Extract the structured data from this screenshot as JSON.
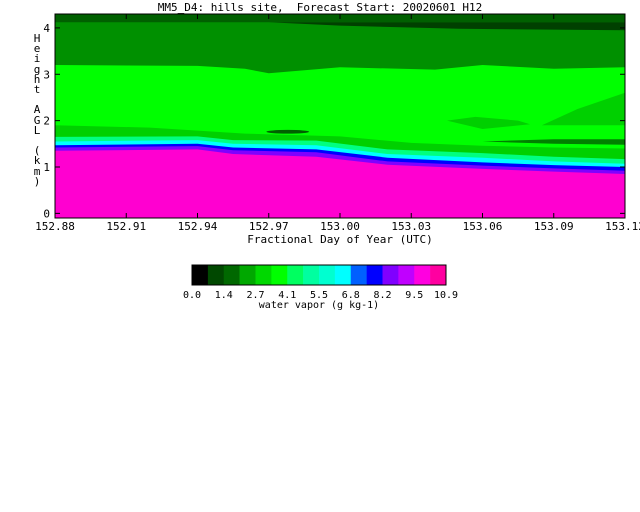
{
  "chart_data": {
    "type": "heatmap",
    "title": "MM5_D4: hills site,  Forecast Start: 20020601 H12",
    "xlabel": "Fractional Day of Year (UTC)",
    "ylabel": "Height AGL (km)",
    "xlim": [
      152.88,
      153.12
    ],
    "ylim": [
      -0.1,
      4.3
    ],
    "x_ticks": [
      "152.88",
      "152.91",
      "152.94",
      "152.97",
      "153.00",
      "153.03",
      "153.06",
      "153.09",
      "153.12"
    ],
    "y_ticks": [
      "0",
      "1",
      "2",
      "3",
      "4"
    ],
    "colorbar": {
      "label": "water vapor (g kg-1)",
      "tick_labels": [
        "0.0",
        "1.4",
        "2.7",
        "4.1",
        "5.5",
        "6.8",
        "8.2",
        "9.5",
        "10.9"
      ],
      "level_boundaries": [
        0.0,
        0.68,
        1.36,
        2.04,
        2.72,
        3.4,
        4.08,
        4.76,
        5.44,
        6.12,
        6.8,
        7.48,
        8.16,
        8.84,
        9.52,
        10.2,
        10.9
      ],
      "colors": [
        "#000000",
        "#004800",
        "#006800",
        "#00a800",
        "#00d800",
        "#00ff00",
        "#00ff60",
        "#00ffa0",
        "#00ffd0",
        "#00ffff",
        "#0060ff",
        "#0000ff",
        "#8000ff",
        "#c000ff",
        "#ff00e0",
        "#ff00a0"
      ]
    },
    "fields": [
      {
        "name": "moist boundary layer",
        "level": 10.2,
        "color": "#ff00d0",
        "top": [
          [
            152.88,
            1.35
          ],
          [
            152.94,
            1.38
          ],
          [
            152.955,
            1.28
          ],
          [
            152.99,
            1.22
          ],
          [
            153.02,
            1.05
          ],
          [
            153.06,
            0.96
          ],
          [
            153.09,
            0.9
          ],
          [
            153.12,
            0.85
          ]
        ]
      },
      {
        "name": "transition 9.5",
        "level": 9.5,
        "color": "#8000ff",
        "top": [
          [
            152.88,
            1.42
          ],
          [
            152.94,
            1.45
          ],
          [
            152.955,
            1.36
          ],
          [
            152.99,
            1.32
          ],
          [
            153.02,
            1.12
          ],
          [
            153.06,
            1.03
          ],
          [
            153.09,
            0.97
          ],
          [
            153.12,
            0.92
          ]
        ]
      },
      {
        "name": "transition 8.2",
        "level": 8.2,
        "color": "#0000ff",
        "top": [
          [
            152.88,
            1.47
          ],
          [
            152.94,
            1.5
          ],
          [
            152.955,
            1.42
          ],
          [
            152.99,
            1.38
          ],
          [
            153.02,
            1.2
          ],
          [
            153.06,
            1.1
          ],
          [
            153.09,
            1.04
          ],
          [
            153.12,
            1.0
          ]
        ]
      },
      {
        "name": "transition 6.8",
        "level": 6.8,
        "color": "#00ffff",
        "top": [
          [
            152.88,
            1.55
          ],
          [
            152.94,
            1.58
          ],
          [
            152.955,
            1.5
          ],
          [
            152.99,
            1.47
          ],
          [
            153.02,
            1.28
          ],
          [
            153.06,
            1.2
          ],
          [
            153.09,
            1.12
          ],
          [
            153.12,
            1.07
          ]
        ]
      },
      {
        "name": "transition 5.5",
        "level": 5.5,
        "color": "#00ff80",
        "top": [
          [
            152.88,
            1.65
          ],
          [
            152.94,
            1.66
          ],
          [
            152.955,
            1.58
          ],
          [
            152.99,
            1.57
          ],
          [
            153.02,
            1.38
          ],
          [
            153.06,
            1.3
          ],
          [
            153.09,
            1.22
          ],
          [
            153.12,
            1.17
          ]
        ]
      },
      {
        "name": "mid layer",
        "level": 2.7,
        "color": "#00d000",
        "top": [
          [
            152.88,
            1.9
          ],
          [
            152.92,
            1.85
          ],
          [
            152.96,
            1.72
          ],
          [
            153.0,
            1.66
          ],
          [
            153.03,
            1.52
          ],
          [
            153.06,
            1.46
          ],
          [
            153.09,
            1.42
          ],
          [
            153.12,
            1.4
          ]
        ]
      },
      {
        "name": "upper moist",
        "level": 4.1,
        "color": "#00ff00",
        "top": [
          [
            152.88,
            3.2
          ],
          [
            152.94,
            3.18
          ],
          [
            152.96,
            3.12
          ],
          [
            152.97,
            3.02
          ],
          [
            153.0,
            3.15
          ],
          [
            153.04,
            3.1
          ],
          [
            153.06,
            3.2
          ],
          [
            153.09,
            3.12
          ],
          [
            153.12,
            3.15
          ]
        ]
      },
      {
        "name": "upper dry",
        "level": 1.4,
        "color": "#009000",
        "top": [
          [
            152.88,
            4.12
          ],
          [
            153.12,
            4.12
          ]
        ]
      }
    ],
    "features": [
      {
        "name": "dry lens",
        "color": "#006000",
        "x": 152.978,
        "y": 1.76,
        "rx": 0.009,
        "ry": 0.04
      },
      {
        "name": "green bump",
        "color": "#00d000",
        "outline": [
          [
            153.045,
            2.0
          ],
          [
            153.057,
            2.08
          ],
          [
            153.075,
            2.0
          ],
          [
            153.08,
            1.92
          ],
          [
            153.06,
            1.82
          ]
        ]
      },
      {
        "name": "right wedge",
        "color": "#00d000",
        "outline": [
          [
            153.085,
            1.9
          ],
          [
            153.1,
            2.25
          ],
          [
            153.12,
            2.6
          ],
          [
            153.12,
            1.9
          ]
        ]
      },
      {
        "name": "upper dark band",
        "color": "#004000",
        "outline": [
          [
            152.97,
            4.12
          ],
          [
            153.0,
            4.05
          ],
          [
            153.05,
            3.98
          ],
          [
            153.12,
            3.95
          ],
          [
            153.12,
            4.12
          ]
        ]
      },
      {
        "name": "right low band",
        "color": "#008000",
        "outline": [
          [
            153.06,
            1.55
          ],
          [
            153.09,
            1.5
          ],
          [
            153.12,
            1.48
          ],
          [
            153.12,
            1.6
          ],
          [
            153.09,
            1.6
          ]
        ]
      }
    ]
  }
}
